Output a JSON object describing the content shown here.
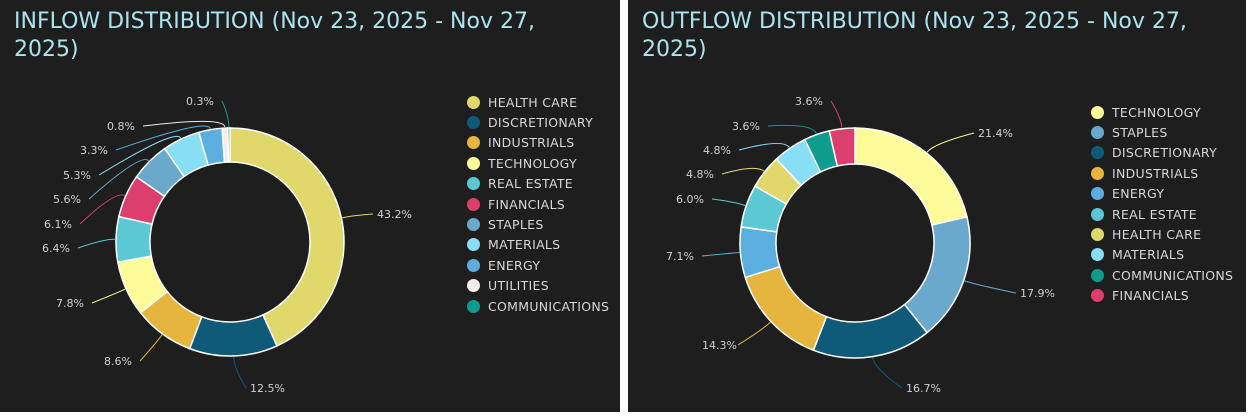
{
  "chart_data": [
    {
      "type": "pie",
      "donut": true,
      "title": "INFLOW DISTRIBUTION (Nov 23, 2025 - Nov 27, 2025)",
      "legend": "right",
      "categories": [
        "HEALTH CARE",
        "DISCRETIONARY",
        "INDUSTRIALS",
        "TECHNOLOGY",
        "REAL ESTATE",
        "FINANCIALS",
        "STAPLES",
        "MATERIALS",
        "ENERGY",
        "UTILITIES",
        "COMMUNICATIONS"
      ],
      "values": [
        43.2,
        12.5,
        8.6,
        7.8,
        6.4,
        6.1,
        5.6,
        5.3,
        3.3,
        0.8,
        0.3
      ],
      "labels": [
        "43.2%",
        "12.5%",
        "8.6%",
        "7.8%",
        "6.4%",
        "6.1%",
        "5.6%",
        "5.3%",
        "3.3%",
        "0.8%",
        "0.3%"
      ],
      "colors": [
        "#e0d86a",
        "#0e5a78",
        "#e6b53e",
        "#fdfc98",
        "#5cc8d6",
        "#dc3f6e",
        "#6aa8cc",
        "#88def5",
        "#5aafdf",
        "#f7eaea",
        "#0f9b8e"
      ]
    },
    {
      "type": "pie",
      "donut": true,
      "title": "OUTFLOW DISTRIBUTION (Nov 23, 2025 - Nov 27, 2025)",
      "legend": "right",
      "categories": [
        "TECHNOLOGY",
        "STAPLES",
        "DISCRETIONARY",
        "INDUSTRIALS",
        "ENERGY",
        "REAL ESTATE",
        "HEALTH CARE",
        "MATERIALS",
        "COMMUNICATIONS",
        "FINANCIALS"
      ],
      "values": [
        21.4,
        17.9,
        16.7,
        14.3,
        7.1,
        6.0,
        4.8,
        4.8,
        3.6,
        3.6
      ],
      "labels": [
        "21.4%",
        "17.9%",
        "16.7%",
        "14.3%",
        "7.1%",
        "6.0%",
        "4.8%",
        "4.8%",
        "3.6%",
        "3.6%"
      ],
      "colors": [
        "#fdfc98",
        "#6aa8cc",
        "#0e5a78",
        "#e6b53e",
        "#5aafdf",
        "#5cc8d6",
        "#e0d86a",
        "#88def5",
        "#0f9b8e",
        "#dc3f6e"
      ]
    }
  ]
}
